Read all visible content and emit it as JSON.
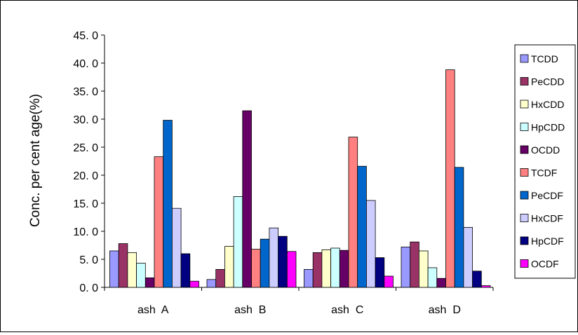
{
  "chart_data": {
    "type": "bar",
    "categories": [
      "ash  A",
      "ash  B",
      "ash  C",
      "ash  D"
    ],
    "ylabel": "Conc. per cent age(%)",
    "ylim": [
      0,
      45
    ],
    "yticks": [
      "0. 0",
      "5. 0",
      "10. 0",
      "15. 0",
      "20. 0",
      "25. 0",
      "30. 0",
      "35. 0",
      "40. 0",
      "45. 0"
    ],
    "grid": false,
    "legend": "right",
    "series": [
      {
        "name": "TCDD",
        "color": "#9999ff",
        "values": [
          6.5,
          1.4,
          3.2,
          7.2
        ]
      },
      {
        "name": "PeCDD",
        "color": "#993366",
        "values": [
          7.8,
          3.2,
          6.2,
          8.1
        ]
      },
      {
        "name": "HxCDD",
        "color": "#ffffcc",
        "values": [
          6.2,
          7.3,
          6.7,
          6.5
        ]
      },
      {
        "name": "HpCDD",
        "color": "#ccffff",
        "values": [
          4.3,
          16.2,
          7.0,
          3.5
        ]
      },
      {
        "name": "OCDD",
        "color": "#660066",
        "values": [
          1.7,
          31.5,
          6.6,
          1.6
        ]
      },
      {
        "name": "TCDF",
        "color": "#ff8080",
        "values": [
          23.3,
          6.8,
          26.8,
          38.8
        ]
      },
      {
        "name": "PeCDF",
        "color": "#0066cc",
        "values": [
          29.8,
          8.6,
          21.6,
          21.4
        ]
      },
      {
        "name": "HxCDF",
        "color": "#ccccff",
        "values": [
          14.1,
          10.6,
          15.5,
          10.7
        ]
      },
      {
        "name": "HpCDF",
        "color": "#000080",
        "values": [
          6.0,
          9.1,
          5.3,
          2.9
        ]
      },
      {
        "name": "OCDF",
        "color": "#ff00ff",
        "values": [
          1.1,
          6.4,
          2.0,
          0.3
        ]
      }
    ]
  }
}
